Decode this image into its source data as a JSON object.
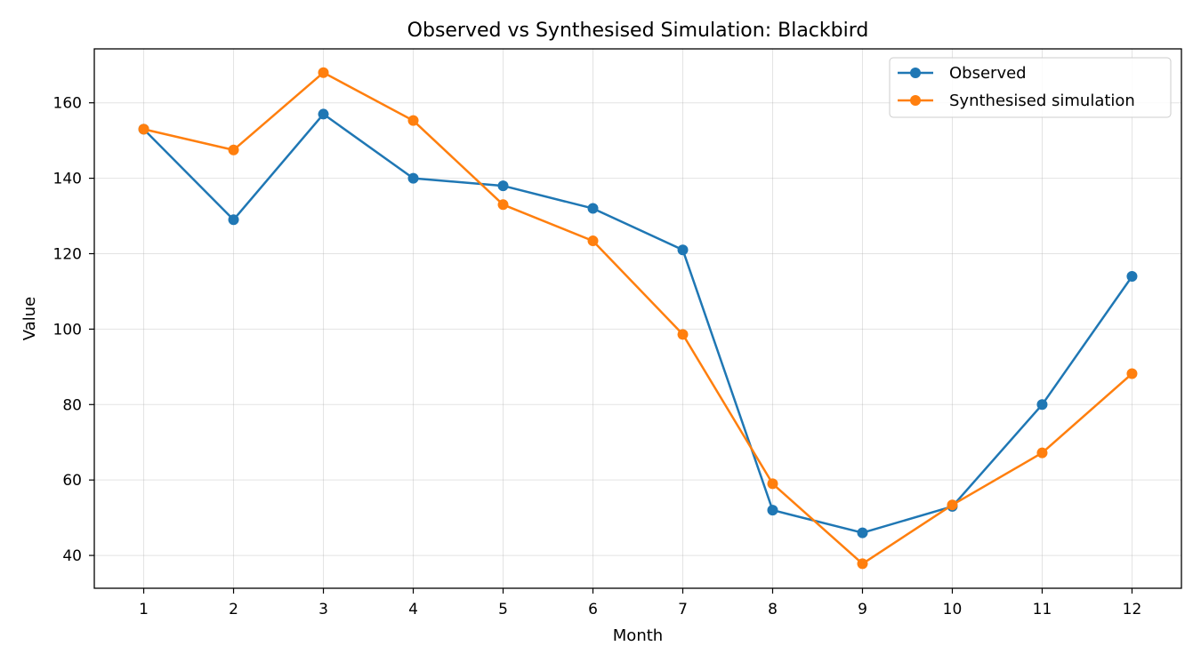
{
  "chart_data": {
    "type": "line",
    "title": "Observed vs Synthesised Simulation: Blackbird",
    "xlabel": "Month",
    "ylabel": "Value",
    "x": [
      1,
      2,
      3,
      4,
      5,
      6,
      7,
      8,
      9,
      10,
      11,
      12
    ],
    "xlim": [
      0.45,
      12.55
    ],
    "ylim": [
      31.3,
      174.3
    ],
    "yticks": [
      40,
      60,
      80,
      100,
      120,
      140,
      160
    ],
    "grid": true,
    "legend_position": "top-right",
    "series": [
      {
        "name": "Observed",
        "color": "#1f77b4",
        "values": [
          153,
          129,
          157,
          140,
          138,
          132,
          121,
          52,
          46,
          53,
          80,
          114
        ]
      },
      {
        "name": "Synthesised simulation",
        "color": "#ff7f0e",
        "values": [
          153,
          147.5,
          168,
          155.3,
          133,
          123.4,
          98.6,
          59,
          37.8,
          53.4,
          67.2,
          88.2
        ]
      }
    ]
  }
}
